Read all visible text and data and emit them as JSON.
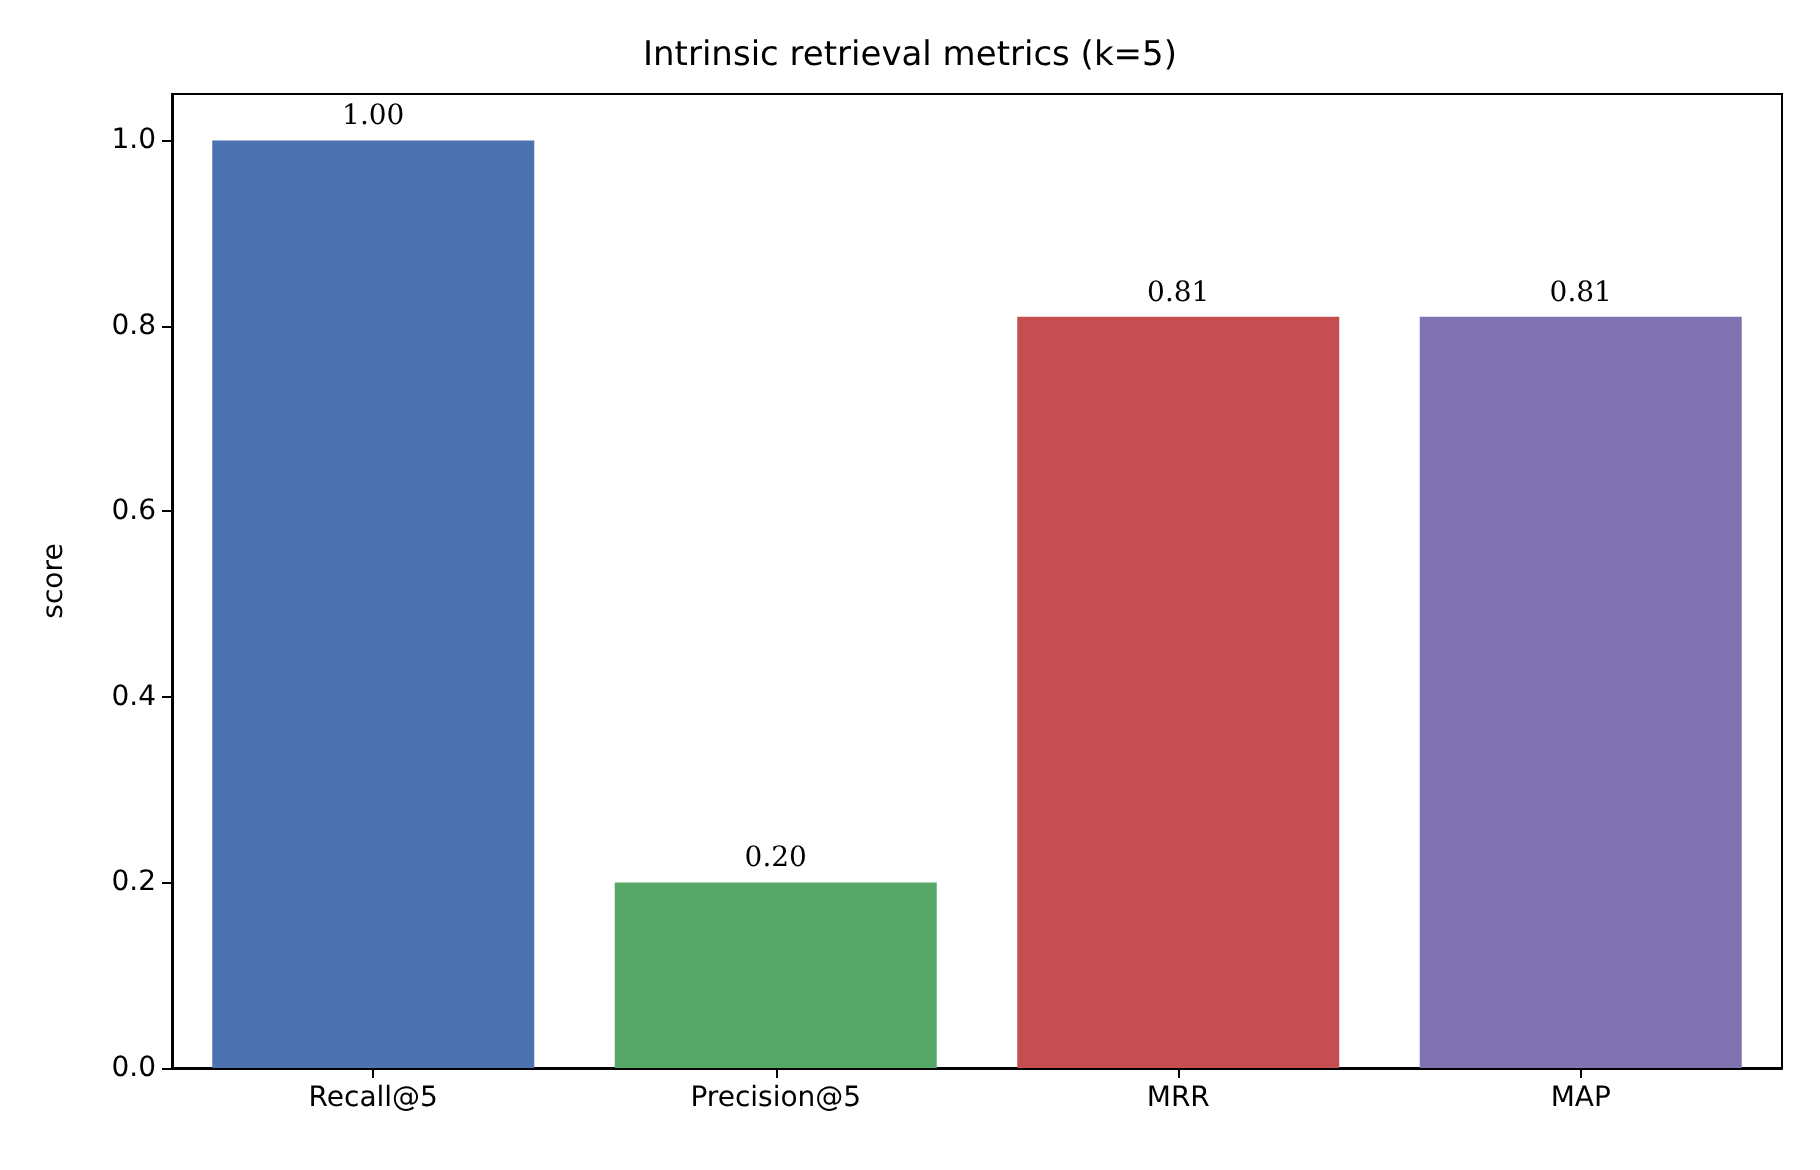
{
  "chart_data": {
    "type": "bar",
    "title": "Intrinsic retrieval metrics (k=5)",
    "ylabel": "score",
    "categories": [
      "Recall@5",
      "Precision@5",
      "MRR",
      "MAP"
    ],
    "values": [
      1,
      0.2,
      0.81,
      0.81
    ],
    "colors": [
      "#4c72b0",
      "#55a868",
      "#c44e52",
      "#8172b2"
    ],
    "value_labels": [
      "1.00",
      "0.20",
      "0.81",
      "0.81"
    ],
    "ylim": [
      0,
      1.05
    ],
    "yticks": [
      {
        "value": 0,
        "label": "0.0"
      },
      {
        "value": 0.2,
        "label": "0.2"
      },
      {
        "value": 0.4,
        "label": "0.4"
      },
      {
        "value": 0.6,
        "label": "0.6"
      },
      {
        "value": 0.8,
        "label": "0.8"
      },
      {
        "value": 1,
        "label": "1.0"
      }
    ],
    "grid": false
  }
}
